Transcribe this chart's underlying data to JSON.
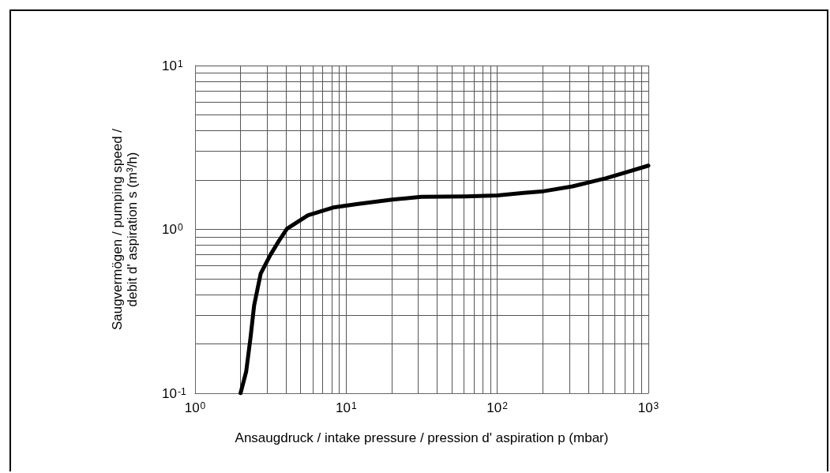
{
  "chart_data": {
    "type": "line",
    "xlabel": "Ansaugdruck / intake pressure / pression d' aspiration p (mbar)",
    "ylabel": "Saugvermögen / pumping speed / debit d' aspiration s (m³/h)",
    "log": "xy",
    "grid": true,
    "marker": "none",
    "line_style": "solid",
    "xlim": [
      1,
      1000
    ],
    "ylim": [
      0.1,
      10
    ],
    "xticks": [
      {
        "value": 1,
        "label": "10$^{0}$"
      },
      {
        "value": 2,
        "label": null
      },
      {
        "value": 3,
        "label": null
      },
      {
        "value": 4,
        "label": null
      },
      {
        "value": 5,
        "label": null
      },
      {
        "value": 6,
        "label": null
      },
      {
        "value": 7,
        "label": null
      },
      {
        "value": 8,
        "label": null
      },
      {
        "value": 9,
        "label": null
      },
      {
        "value": 10,
        "label": "10$^{1}$"
      },
      {
        "value": 20,
        "label": null
      },
      {
        "value": 30,
        "label": null
      },
      {
        "value": 40,
        "label": null
      },
      {
        "value": 50,
        "label": null
      },
      {
        "value": 60,
        "label": null
      },
      {
        "value": 70,
        "label": null
      },
      {
        "value": 80,
        "label": null
      },
      {
        "value": 90,
        "label": null
      },
      {
        "value": 100,
        "label": "10$^{2}$"
      },
      {
        "value": 200,
        "label": null
      },
      {
        "value": 300,
        "label": null
      },
      {
        "value": 400,
        "label": null
      },
      {
        "value": 500,
        "label": null
      },
      {
        "value": 600,
        "label": null
      },
      {
        "value": 700,
        "label": null
      },
      {
        "value": 800,
        "label": null
      },
      {
        "value": 900,
        "label": null
      },
      {
        "value": 1000,
        "label": "10$^{3}$"
      }
    ],
    "yticks": [
      {
        "value": 0.1,
        "label": "10$^{-1}$"
      },
      {
        "value": 0.2,
        "label": null
      },
      {
        "value": 0.3,
        "label": null
      },
      {
        "value": 0.4,
        "label": null
      },
      {
        "value": 0.5,
        "label": null
      },
      {
        "value": 0.6,
        "label": null
      },
      {
        "value": 0.7,
        "label": null
      },
      {
        "value": 0.8,
        "label": null
      },
      {
        "value": 0.9,
        "label": null
      },
      {
        "value": 1,
        "label": "10$^{0}$"
      },
      {
        "value": 2,
        "label": null
      },
      {
        "value": 3,
        "label": null
      },
      {
        "value": 4,
        "label": null
      },
      {
        "value": 5,
        "label": null
      },
      {
        "value": 6,
        "label": null
      },
      {
        "value": 7,
        "label": null
      },
      {
        "value": 8,
        "label": null
      },
      {
        "value": 9,
        "label": null
      },
      {
        "value": 10,
        "label": "10$^{1}$"
      }
    ],
    "series": [
      {
        "color": "#000000",
        "x": [
          2,
          2.18,
          2.33,
          2.46,
          2.72,
          3.15,
          3.6,
          4.06,
          5.59,
          6.8,
          8.19,
          12,
          20.2,
          31.4,
          62,
          100,
          150,
          203,
          315,
          521,
          700,
          1000
        ],
        "values": [
          0.1,
          0.136,
          0.22,
          0.344,
          0.538,
          0.698,
          0.855,
          1.01,
          1.22,
          1.29,
          1.36,
          1.43,
          1.52,
          1.58,
          1.59,
          1.61,
          1.67,
          1.71,
          1.83,
          2.05,
          2.22,
          2.45
        ]
      }
    ]
  }
}
